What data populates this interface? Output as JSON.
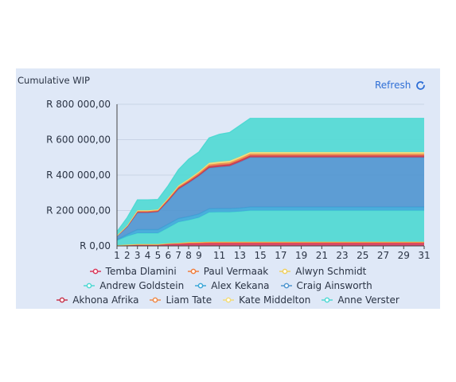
{
  "header": {
    "title": "Cumulative WIP",
    "refresh_label": "Refresh"
  },
  "chart_data": {
    "type": "area",
    "title": "Cumulative WIP",
    "stacked": true,
    "ylim": [
      0,
      800000
    ],
    "y_ticks": [
      0,
      200000,
      400000,
      600000,
      800000
    ],
    "y_tick_labels": [
      "R 0,00",
      "R 200 000,00",
      "R 400 000,00",
      "R 600 000,00",
      "R 800 000,00"
    ],
    "x": [
      1,
      2,
      3,
      4,
      5,
      6,
      7,
      8,
      9,
      10,
      11,
      12,
      13,
      14,
      15,
      16,
      17,
      18,
      19,
      20,
      21,
      22,
      23,
      24,
      25,
      26,
      27,
      28,
      29,
      30,
      31
    ],
    "x_tick_labels": [
      "1",
      "2",
      "3",
      "4",
      "5",
      "6",
      "7",
      "8",
      "9",
      "11",
      "13",
      "15",
      "17",
      "19",
      "21",
      "23",
      "25",
      "27",
      "29",
      "31"
    ],
    "grid": true,
    "legend_position": "bottom",
    "series": [
      {
        "name": "Temba Dlamini",
        "color": "#d9395b",
        "values": [
          2000,
          4000,
          6000,
          6000,
          6000,
          10000,
          12000,
          14000,
          15000,
          16000,
          16000,
          16000,
          16000,
          16000,
          16000,
          16000,
          16000,
          16000,
          16000,
          16000,
          16000,
          16000,
          16000,
          16000,
          16000,
          16000,
          16000,
          16000,
          16000,
          16000,
          16000
        ]
      },
      {
        "name": "Paul Vermaak",
        "color": "#f07d3c",
        "values": [
          1000,
          2000,
          2000,
          2000,
          2000,
          3000,
          3000,
          4000,
          4000,
          5000,
          5000,
          5000,
          5000,
          5000,
          5000,
          5000,
          5000,
          5000,
          5000,
          5000,
          5000,
          5000,
          5000,
          5000,
          5000,
          5000,
          5000,
          5000,
          5000,
          5000,
          5000
        ]
      },
      {
        "name": "Alwyn Schmidt",
        "color": "#f0d060",
        "values": [
          1000,
          1000,
          2000,
          2000,
          2000,
          2000,
          2000,
          3000,
          3000,
          3000,
          3000,
          3000,
          3000,
          3000,
          3000,
          3000,
          3000,
          3000,
          3000,
          3000,
          3000,
          3000,
          3000,
          3000,
          3000,
          3000,
          3000,
          3000,
          3000,
          3000,
          3000
        ]
      },
      {
        "name": "Andrew Goldstein",
        "color": "#4dd8d2",
        "values": [
          26000,
          48000,
          62000,
          62000,
          62000,
          88000,
          118000,
          125000,
          138000,
          166000,
          167000,
          167000,
          170000,
          176000,
          176000,
          176000,
          176000,
          176000,
          176000,
          176000,
          176000,
          176000,
          176000,
          176000,
          176000,
          176000,
          176000,
          176000,
          176000,
          176000,
          176000
        ]
      },
      {
        "name": "Alex Kekana",
        "color": "#3ba7d8",
        "values": [
          5000,
          10000,
          20000,
          20000,
          20000,
          20000,
          20000,
          20000,
          20000,
          20000,
          20000,
          20000,
          20000,
          20000,
          20000,
          20000,
          20000,
          20000,
          20000,
          20000,
          20000,
          20000,
          20000,
          20000,
          20000,
          20000,
          20000,
          20000,
          20000,
          20000,
          20000
        ]
      },
      {
        "name": "Craig Ainsworth",
        "color": "#4f95cf",
        "values": [
          20000,
          43000,
          95000,
          95000,
          100000,
          130000,
          165000,
          190000,
          215000,
          230000,
          235000,
          240000,
          260000,
          280000,
          280000,
          280000,
          280000,
          280000,
          280000,
          280000,
          280000,
          280000,
          280000,
          280000,
          280000,
          280000,
          280000,
          280000,
          280000,
          280000,
          280000
        ]
      },
      {
        "name": "Akhona Afrika",
        "color": "#c8374f",
        "values": [
          2000,
          3000,
          5000,
          5000,
          5000,
          7000,
          8000,
          8000,
          8000,
          10000,
          10000,
          10000,
          10000,
          10000,
          10000,
          10000,
          10000,
          10000,
          10000,
          10000,
          10000,
          10000,
          10000,
          10000,
          10000,
          10000,
          10000,
          10000,
          10000,
          10000,
          10000
        ]
      },
      {
        "name": "Liam Tate",
        "color": "#ee8a4a",
        "values": [
          1000,
          3000,
          5000,
          5000,
          5000,
          6000,
          7000,
          8000,
          9000,
          10000,
          10000,
          10000,
          10000,
          10000,
          10000,
          10000,
          10000,
          10000,
          10000,
          10000,
          10000,
          10000,
          10000,
          10000,
          10000,
          10000,
          10000,
          10000,
          10000,
          10000,
          10000
        ]
      },
      {
        "name": "Kate Middelton",
        "color": "#f3dc78",
        "values": [
          1000,
          2000,
          4000,
          4000,
          4000,
          5000,
          6000,
          7000,
          8000,
          9000,
          10000,
          10000,
          10000,
          10000,
          10000,
          10000,
          10000,
          10000,
          10000,
          10000,
          10000,
          10000,
          10000,
          10000,
          10000,
          10000,
          10000,
          10000,
          10000,
          10000,
          10000
        ]
      },
      {
        "name": "Anne Verster",
        "color": "#4fd9d3",
        "values": [
          21000,
          44000,
          59000,
          59000,
          56000,
          69000,
          89000,
          111000,
          110000,
          141000,
          154000,
          159000,
          176000,
          190000,
          190000,
          190000,
          190000,
          190000,
          190000,
          190000,
          190000,
          190000,
          190000,
          190000,
          190000,
          190000,
          190000,
          190000,
          190000,
          190000,
          190000
        ]
      }
    ]
  }
}
